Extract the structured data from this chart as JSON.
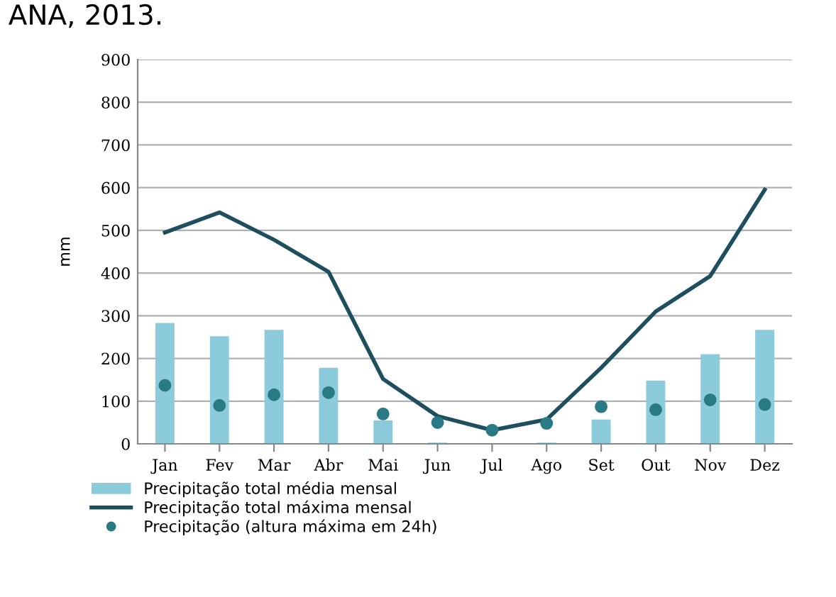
{
  "chart_data": {
    "type": "bar",
    "ylabel": "mm",
    "annotations": [
      "ANA, 2013."
    ],
    "categories": [
      "Jan",
      "Fev",
      "Mar",
      "Abr",
      "Mai",
      "Jun",
      "Jul",
      "Ago",
      "Set",
      "Out",
      "Nov",
      "Dez"
    ],
    "series": [
      {
        "name": "Precipitação total média mensal",
        "color": "#8ccbdb",
        "values": [
          283,
          252,
          267,
          178,
          55,
          3,
          1,
          3,
          57,
          148,
          210,
          267
        ]
      },
      {
        "name": "Precipitação total máxima mensal",
        "type": "line",
        "color": "#1f4e5f",
        "values": [
          495,
          542,
          478,
          403,
          152,
          65,
          32,
          57,
          178,
          310,
          393,
          595
        ]
      },
      {
        "name": "Precipitação (altura máxima em 24h)",
        "type": "scatter",
        "color": "#2a7a85",
        "values": [
          137,
          90,
          115,
          120,
          70,
          50,
          32,
          48,
          87,
          80,
          103,
          92
        ]
      }
    ],
    "ylim": [
      0,
      900
    ],
    "yticks": [
      0,
      100,
      200,
      300,
      400,
      500,
      600,
      700,
      800,
      900
    ],
    "grid": "y",
    "legend": "bottom left"
  }
}
